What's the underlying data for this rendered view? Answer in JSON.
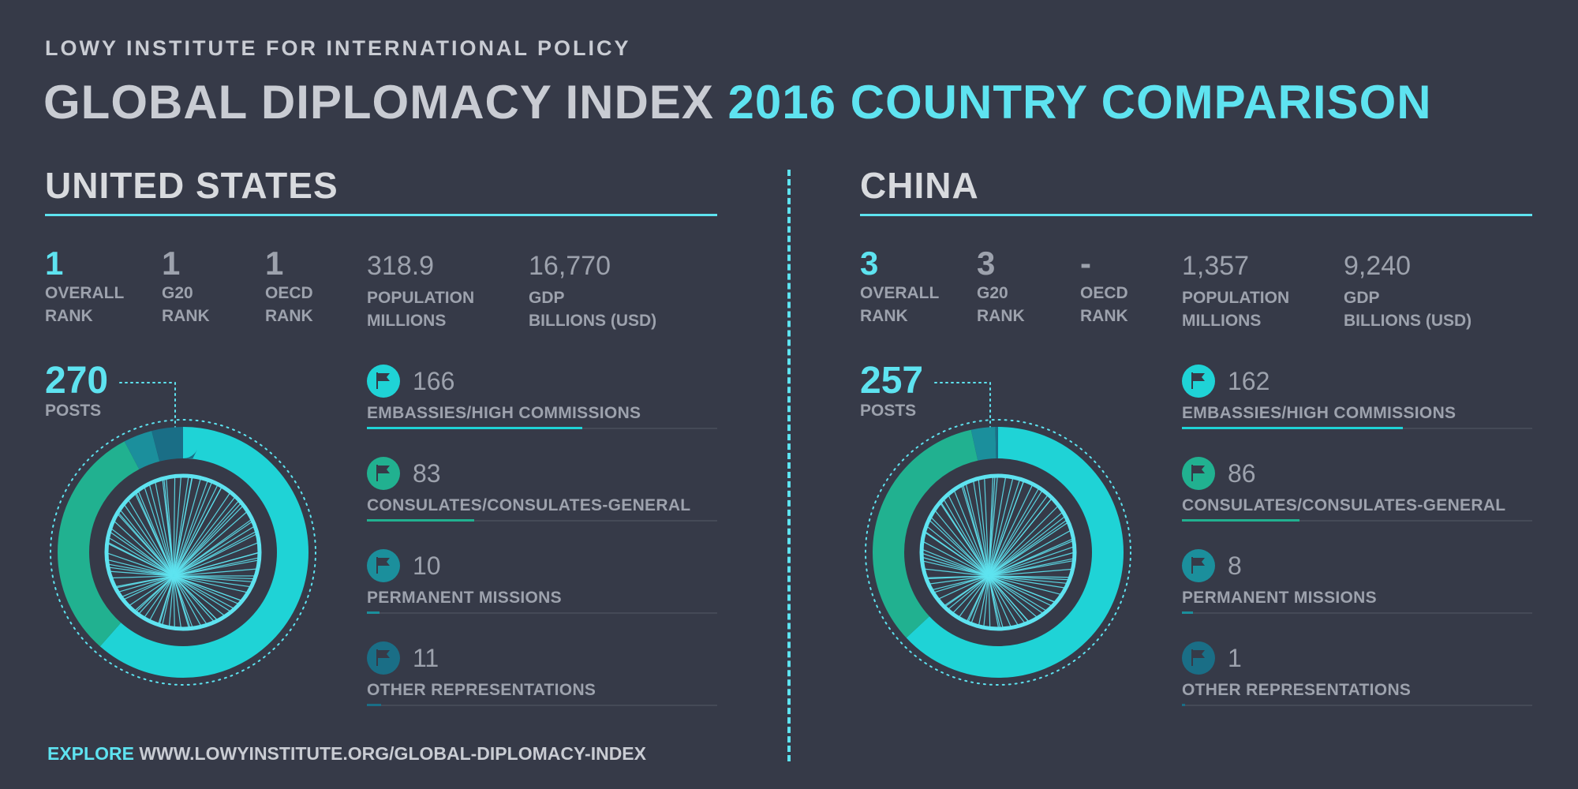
{
  "header": {
    "kicker": "LOWY INSTITUTE FOR INTERNATIONAL POLICY",
    "title_part1": "GLOBAL DIPLOMACY INDEX",
    "title_part2": "2016 COUNTRY COMPARISON"
  },
  "labels": {
    "overall_rank_1": "OVERALL",
    "overall_rank_2": "RANK",
    "g20_rank_1": "G20",
    "g20_rank_2": "RANK",
    "oecd_rank_1": "OECD",
    "oecd_rank_2": "RANK",
    "population_1": "POPULATION",
    "population_2": "MILLIONS",
    "gdp_1": "GDP",
    "gdp_2": "BILLIONS (USD)",
    "posts": "POSTS",
    "embassies": "EMBASSIES/HIGH COMMISSIONS",
    "consulates": "CONSULATES/CONSULATES-GENERAL",
    "permanent": "PERMANENT MISSIONS",
    "other": "OTHER REPRESENTATIONS"
  },
  "footer": {
    "explore": "EXPLORE",
    "url": "WWW.LOWYINSTITUTE.ORG/GLOBAL-DIPLOMACY-INDEX"
  },
  "colors": {
    "background": "#363a48",
    "accent": "#5ee3f0",
    "embassies": "#1fd3d6",
    "consulates": "#21b190",
    "permanent": "#1b8f9c",
    "other": "#1a6e86",
    "text": "#c9ccd3",
    "muted": "#9da2ad"
  },
  "icons": {
    "category_icon": "flag-icon"
  },
  "chart_data": [
    {
      "type": "pie",
      "country": "UNITED STATES",
      "overall_rank": "1",
      "g20_rank": "1",
      "oecd_rank": "1",
      "population": "318.9",
      "gdp": "16,770",
      "posts": "270",
      "categories": [
        "EMBASSIES/HIGH COMMISSIONS",
        "CONSULATES/CONSULATES-GENERAL",
        "PERMANENT MISSIONS",
        "OTHER REPRESENTATIONS"
      ],
      "values": [
        166,
        83,
        10,
        11
      ],
      "display_values": [
        "166",
        "83",
        "10",
        "11"
      ]
    },
    {
      "type": "pie",
      "country": "CHINA",
      "overall_rank": "3",
      "g20_rank": "3",
      "oecd_rank": "-",
      "population": "1,357",
      "gdp": "9,240",
      "posts": "257",
      "categories": [
        "EMBASSIES/HIGH COMMISSIONS",
        "CONSULATES/CONSULATES-GENERAL",
        "PERMANENT MISSIONS",
        "OTHER REPRESENTATIONS"
      ],
      "values": [
        162,
        86,
        8,
        1
      ],
      "display_values": [
        "162",
        "86",
        "8",
        "1"
      ]
    }
  ]
}
